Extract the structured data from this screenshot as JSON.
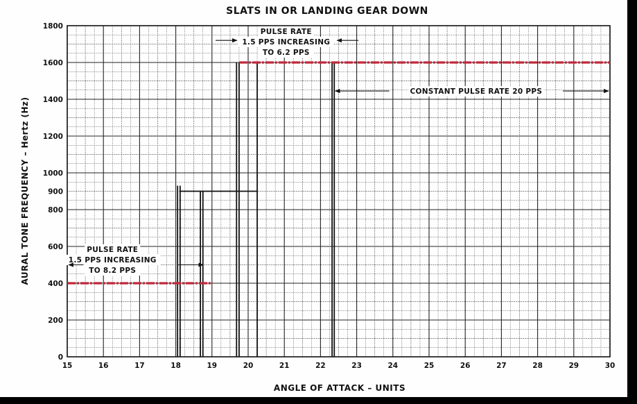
{
  "chart_data": {
    "type": "line",
    "title": "SLATS IN OR LANDING GEAR DOWN",
    "xlabel": "ANGLE OF ATTACK – UNITS",
    "ylabel": "AURAL TONE FREQUENCY – Hertz (Hz)",
    "xlim": [
      15,
      30
    ],
    "ylim": [
      0,
      1800
    ],
    "x_ticks": [
      "15",
      "16",
      "17",
      "18",
      "19",
      "20",
      "21",
      "22",
      "23",
      "24",
      "25",
      "26",
      "27",
      "28",
      "29",
      "30"
    ],
    "y_ticks": [
      {
        "label": "0",
        "value": 0
      },
      {
        "label": "200",
        "value": 200
      },
      {
        "label": "400",
        "value": 400
      },
      {
        "label": "600",
        "value": 600
      },
      {
        "label": "800",
        "value": 800
      },
      {
        "label": "900",
        "value": 900
      },
      {
        "label": "1000",
        "value": 1000
      },
      {
        "label": "1200",
        "value": 1200
      },
      {
        "label": "1400",
        "value": 1400
      },
      {
        "label": "1600",
        "value": 1600
      },
      {
        "label": "1800",
        "value": 1800
      }
    ],
    "grid": true,
    "line_color": "#c0283a",
    "series": [
      {
        "x": [
          15,
          19
        ],
        "y": [
          400,
          400
        ]
      },
      {
        "x": [
          19.75,
          30
        ],
        "y": [
          1600,
          1600
        ]
      }
    ],
    "annotations": [
      {
        "lines": [
          "PULSE RATE",
          "1.5 PPS INCREASING",
          "TO 8.2 PPS"
        ],
        "x_range": [
          15,
          18.8
        ]
      },
      {
        "lines": [
          "PULSE RATE",
          "1.5 PPS INCREASING",
          "TO 6.2 PPS"
        ],
        "x_range": [
          19.75,
          22.35
        ]
      },
      {
        "lines": [
          "CONSTANT PULSE RATE 20 PPS"
        ],
        "x_range": [
          22.35,
          30
        ]
      }
    ]
  }
}
